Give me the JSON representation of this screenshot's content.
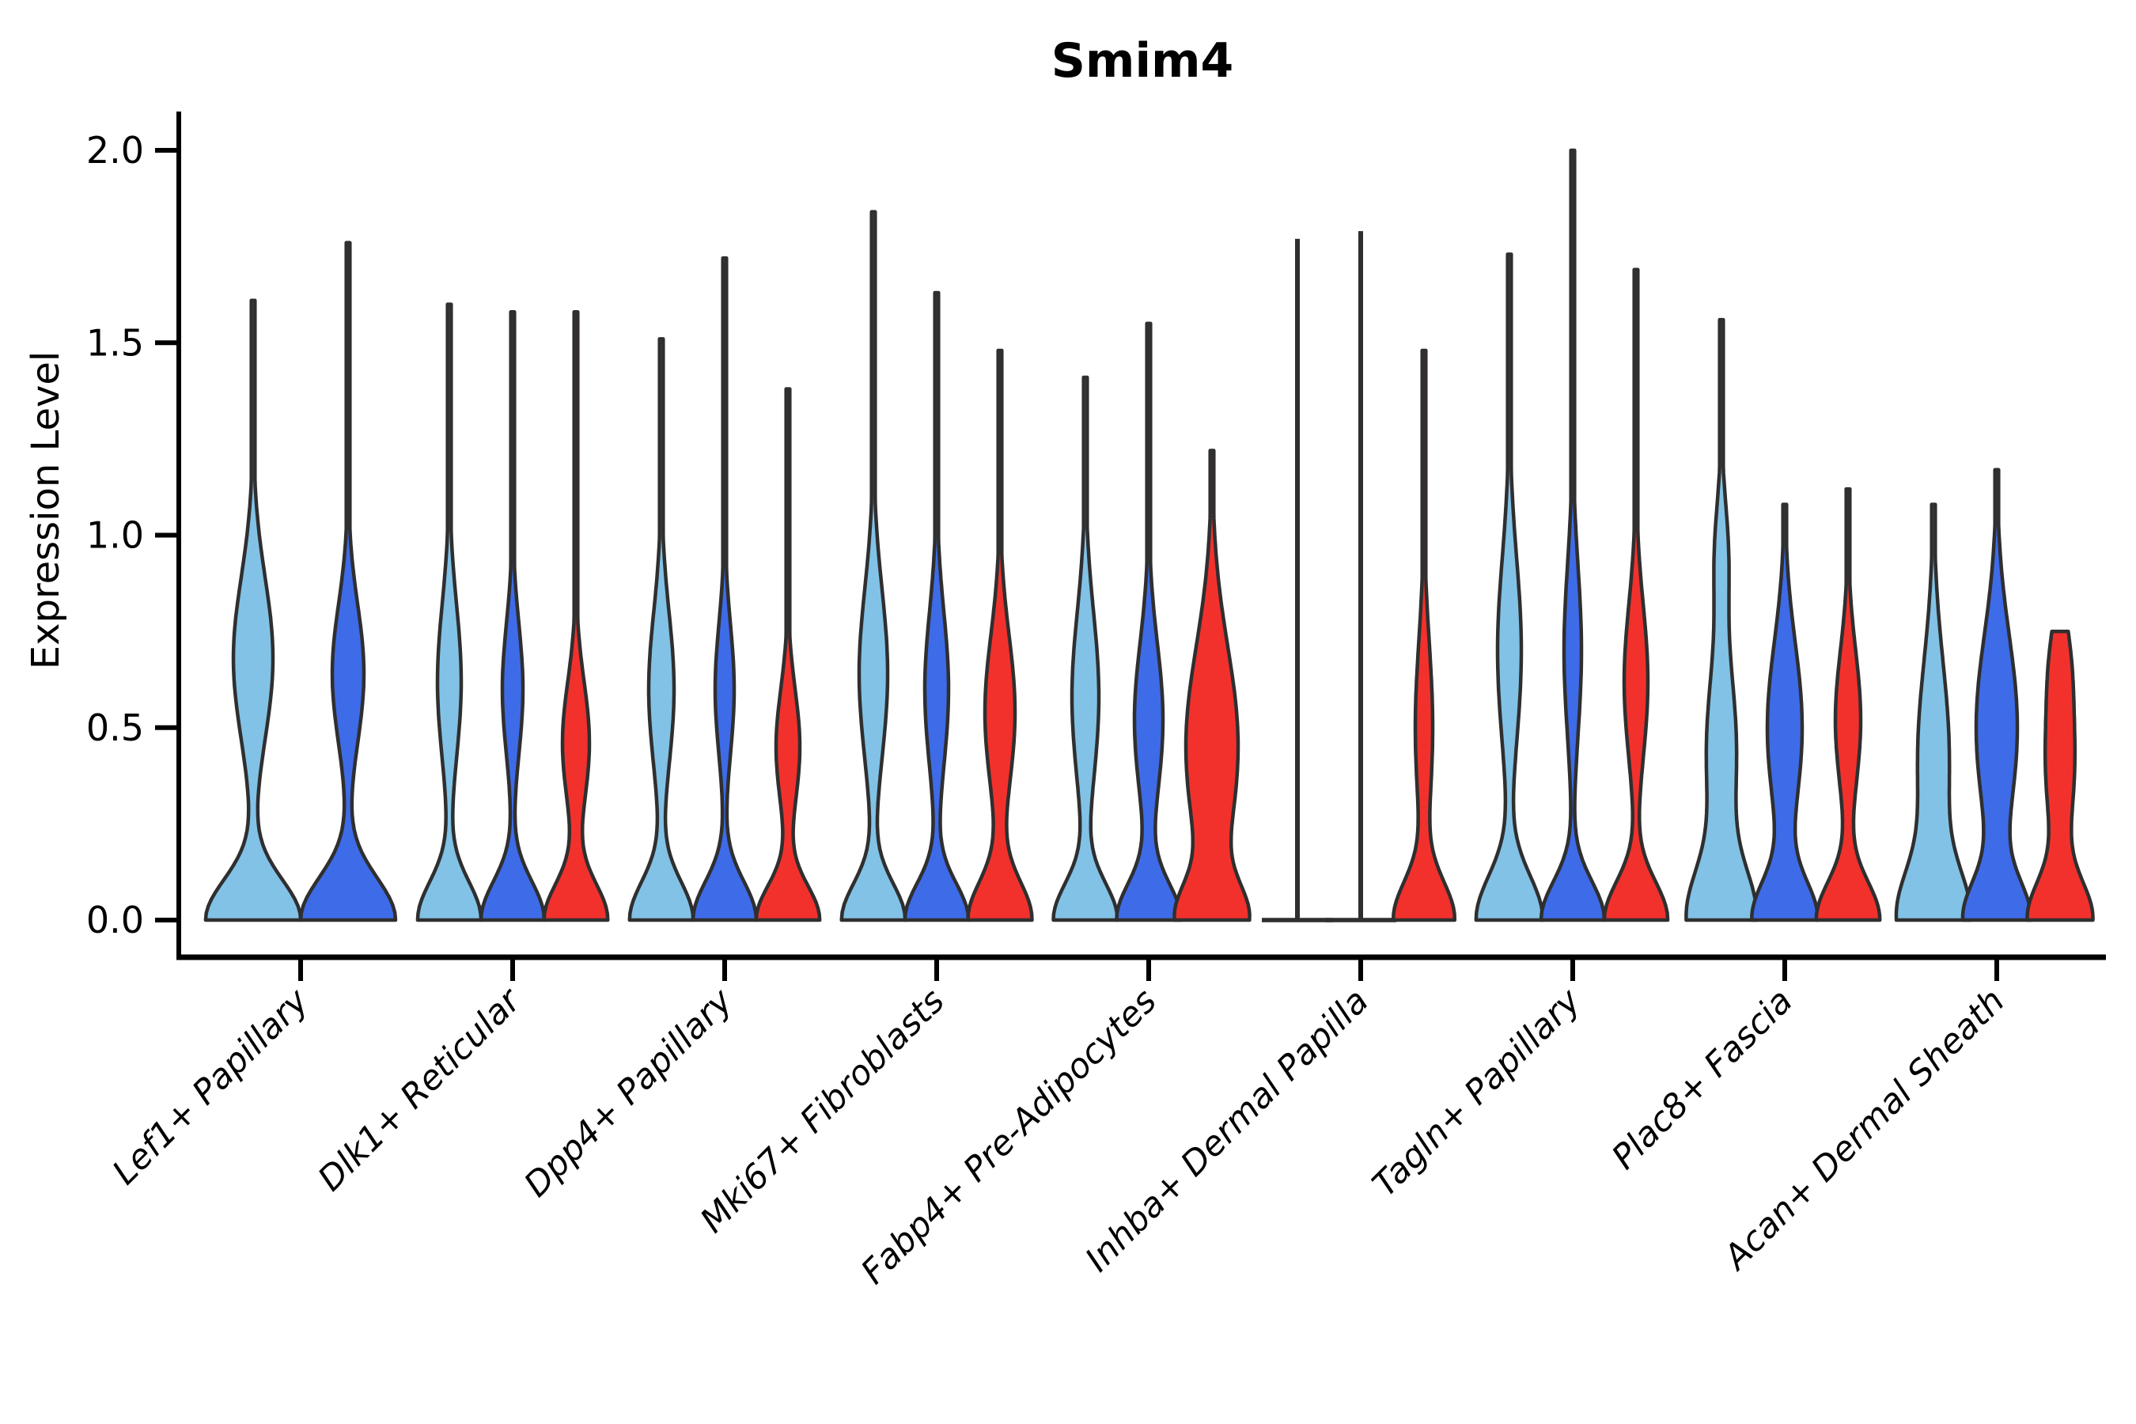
{
  "chart_data": {
    "type": "violin",
    "title": "Smim4",
    "ylabel": "Expression Level",
    "xlabel": "",
    "ylim": [
      0.0,
      2.05
    ],
    "yticks": [
      {
        "value": 0.0,
        "label": "0.0"
      },
      {
        "value": 0.5,
        "label": "0.5"
      },
      {
        "value": 1.0,
        "label": "1.0"
      },
      {
        "value": 1.5,
        "label": "1.5"
      },
      {
        "value": 2.0,
        "label": "2.0"
      }
    ],
    "grid": false,
    "legend": "none",
    "series_colors": {
      "light_blue": "#82C2E6",
      "dark_blue": "#3E6BE8",
      "red": "#F2312D"
    },
    "outline_color": "#2F2F2F",
    "categories": [
      {
        "name": "Lef1+ Papillary",
        "violins": [
          {
            "series": "light_blue",
            "style": "violin",
            "max": 1.61,
            "shape": {
              "base": [
                60,
                0.105
              ],
              "bulge": [
                25,
                0.68,
                0.21
              ]
            }
          },
          {
            "series": "dark_blue",
            "style": "violin",
            "max": 1.76,
            "shape": {
              "base": [
                60,
                0.11
              ],
              "bulge": [
                20,
                0.64,
                0.18
              ]
            }
          }
        ]
      },
      {
        "name": "Dlk1+ Reticular",
        "violins": [
          {
            "series": "light_blue",
            "style": "violin",
            "max": 1.6,
            "shape": {
              "base": [
                40,
                0.1
              ],
              "bulge": [
                15,
                0.62,
                0.2
              ]
            }
          },
          {
            "series": "dark_blue",
            "style": "violin",
            "max": 1.58,
            "shape": {
              "base": [
                40,
                0.1
              ],
              "bulge": [
                13,
                0.6,
                0.17
              ]
            }
          },
          {
            "series": "red",
            "style": "violin",
            "max": 1.58,
            "shape": {
              "base": [
                40,
                0.095
              ],
              "bulge": [
                17,
                0.46,
                0.16
              ]
            }
          }
        ]
      },
      {
        "name": "Dpp4+ Papillary",
        "violins": [
          {
            "series": "light_blue",
            "style": "violin",
            "max": 1.51,
            "shape": {
              "base": [
                40,
                0.1
              ],
              "bulge": [
                16,
                0.6,
                0.2
              ]
            }
          },
          {
            "series": "dark_blue",
            "style": "violin",
            "max": 1.72,
            "shape": {
              "base": [
                40,
                0.1
              ],
              "bulge": [
                12,
                0.6,
                0.17
              ]
            }
          },
          {
            "series": "red",
            "style": "violin",
            "max": 1.38,
            "shape": {
              "base": [
                40,
                0.09
              ],
              "bulge": [
                15,
                0.45,
                0.15
              ]
            }
          }
        ]
      },
      {
        "name": "Mki67+ Fibroblasts",
        "violins": [
          {
            "series": "light_blue",
            "style": "violin",
            "max": 1.84,
            "shape": {
              "base": [
                40,
                0.095
              ],
              "bulge": [
                18,
                0.64,
                0.22
              ]
            }
          },
          {
            "series": "dark_blue",
            "style": "violin",
            "max": 1.63,
            "shape": {
              "base": [
                40,
                0.095
              ],
              "bulge": [
                15,
                0.6,
                0.2
              ]
            }
          },
          {
            "series": "red",
            "style": "violin",
            "max": 1.48,
            "shape": {
              "base": [
                40,
                0.1
              ],
              "bulge": [
                19,
                0.54,
                0.2
              ]
            }
          }
        ]
      },
      {
        "name": "Fabp4+ Pre-Adipocytes",
        "violins": [
          {
            "series": "light_blue",
            "style": "violin",
            "max": 1.41,
            "shape": {
              "base": [
                40,
                0.095
              ],
              "bulge": [
                17,
                0.58,
                0.22
              ]
            }
          },
          {
            "series": "dark_blue",
            "style": "violin",
            "max": 1.55,
            "shape": {
              "base": [
                40,
                0.095
              ],
              "bulge": [
                18,
                0.52,
                0.2
              ]
            }
          },
          {
            "series": "red",
            "style": "violin",
            "max": 1.22,
            "shape": {
              "base": [
                40,
                0.09
              ],
              "bulge": [
                33,
                0.45,
                0.26
              ]
            }
          }
        ]
      },
      {
        "name": "Inhba+ Dermal Papilla",
        "violins": [
          {
            "series": "light_blue",
            "style": "line",
            "max": 1.77,
            "shape": {
              "base_line_halfwidth": 45
            }
          },
          {
            "series": "dark_blue",
            "style": "line",
            "max": 1.79,
            "shape": {
              "base_line_halfwidth": 45
            }
          },
          {
            "series": "red",
            "style": "violin",
            "max": 1.48,
            "shape": {
              "base": [
                38,
                0.1
              ],
              "bulge": [
                11,
                0.5,
                0.22
              ]
            }
          }
        ]
      },
      {
        "name": "Tagln+ Papillary",
        "violins": [
          {
            "series": "light_blue",
            "style": "violin",
            "max": 1.73,
            "shape": {
              "base": [
                42,
                0.115
              ],
              "bulge": [
                15,
                0.7,
                0.24
              ]
            }
          },
          {
            "series": "dark_blue",
            "style": "violin",
            "max": 2.0,
            "shape": {
              "base": [
                40,
                0.1
              ],
              "bulge": [
                11,
                0.7,
                0.22
              ]
            }
          },
          {
            "series": "red",
            "style": "violin",
            "max": 1.69,
            "shape": {
              "base": [
                40,
                0.1
              ],
              "bulge": [
                15,
                0.62,
                0.2
              ]
            }
          }
        ]
      },
      {
        "name": "Plac8+ Fascia",
        "violins": [
          {
            "series": "light_blue",
            "style": "violin",
            "max": 1.56,
            "shape": {
              "base": [
                42,
                0.13
              ],
              "bulge": [
                19,
                0.44,
                0.22
              ],
              "bulge2": [
                8,
                0.95,
                0.14
              ]
            }
          },
          {
            "series": "dark_blue",
            "style": "violin",
            "max": 1.08,
            "shape": {
              "base": [
                40,
                0.1
              ],
              "bulge": [
                22,
                0.5,
                0.22
              ]
            }
          },
          {
            "series": "red",
            "style": "violin",
            "max": 1.12,
            "shape": {
              "base": [
                40,
                0.1
              ],
              "bulge": [
                16,
                0.52,
                0.18
              ]
            }
          }
        ]
      },
      {
        "name": "Acan+ Dermal Sheath",
        "violins": [
          {
            "series": "light_blue",
            "style": "violin",
            "max": 1.08,
            "shape": {
              "base": [
                42,
                0.125
              ],
              "bulge": [
                20,
                0.42,
                0.25
              ]
            }
          },
          {
            "series": "dark_blue",
            "style": "violin",
            "max": 1.17,
            "shape": {
              "base": [
                40,
                0.1
              ],
              "bulge": [
                26,
                0.5,
                0.24
              ]
            }
          },
          {
            "series": "red",
            "style": "violin",
            "max": 0.75,
            "shape": {
              "base": [
                40,
                0.1
              ],
              "bulge": [
                18,
                0.4,
                0.18
              ],
              "bulge2": [
                9,
                0.68,
                0.12
              ]
            }
          }
        ]
      }
    ]
  }
}
